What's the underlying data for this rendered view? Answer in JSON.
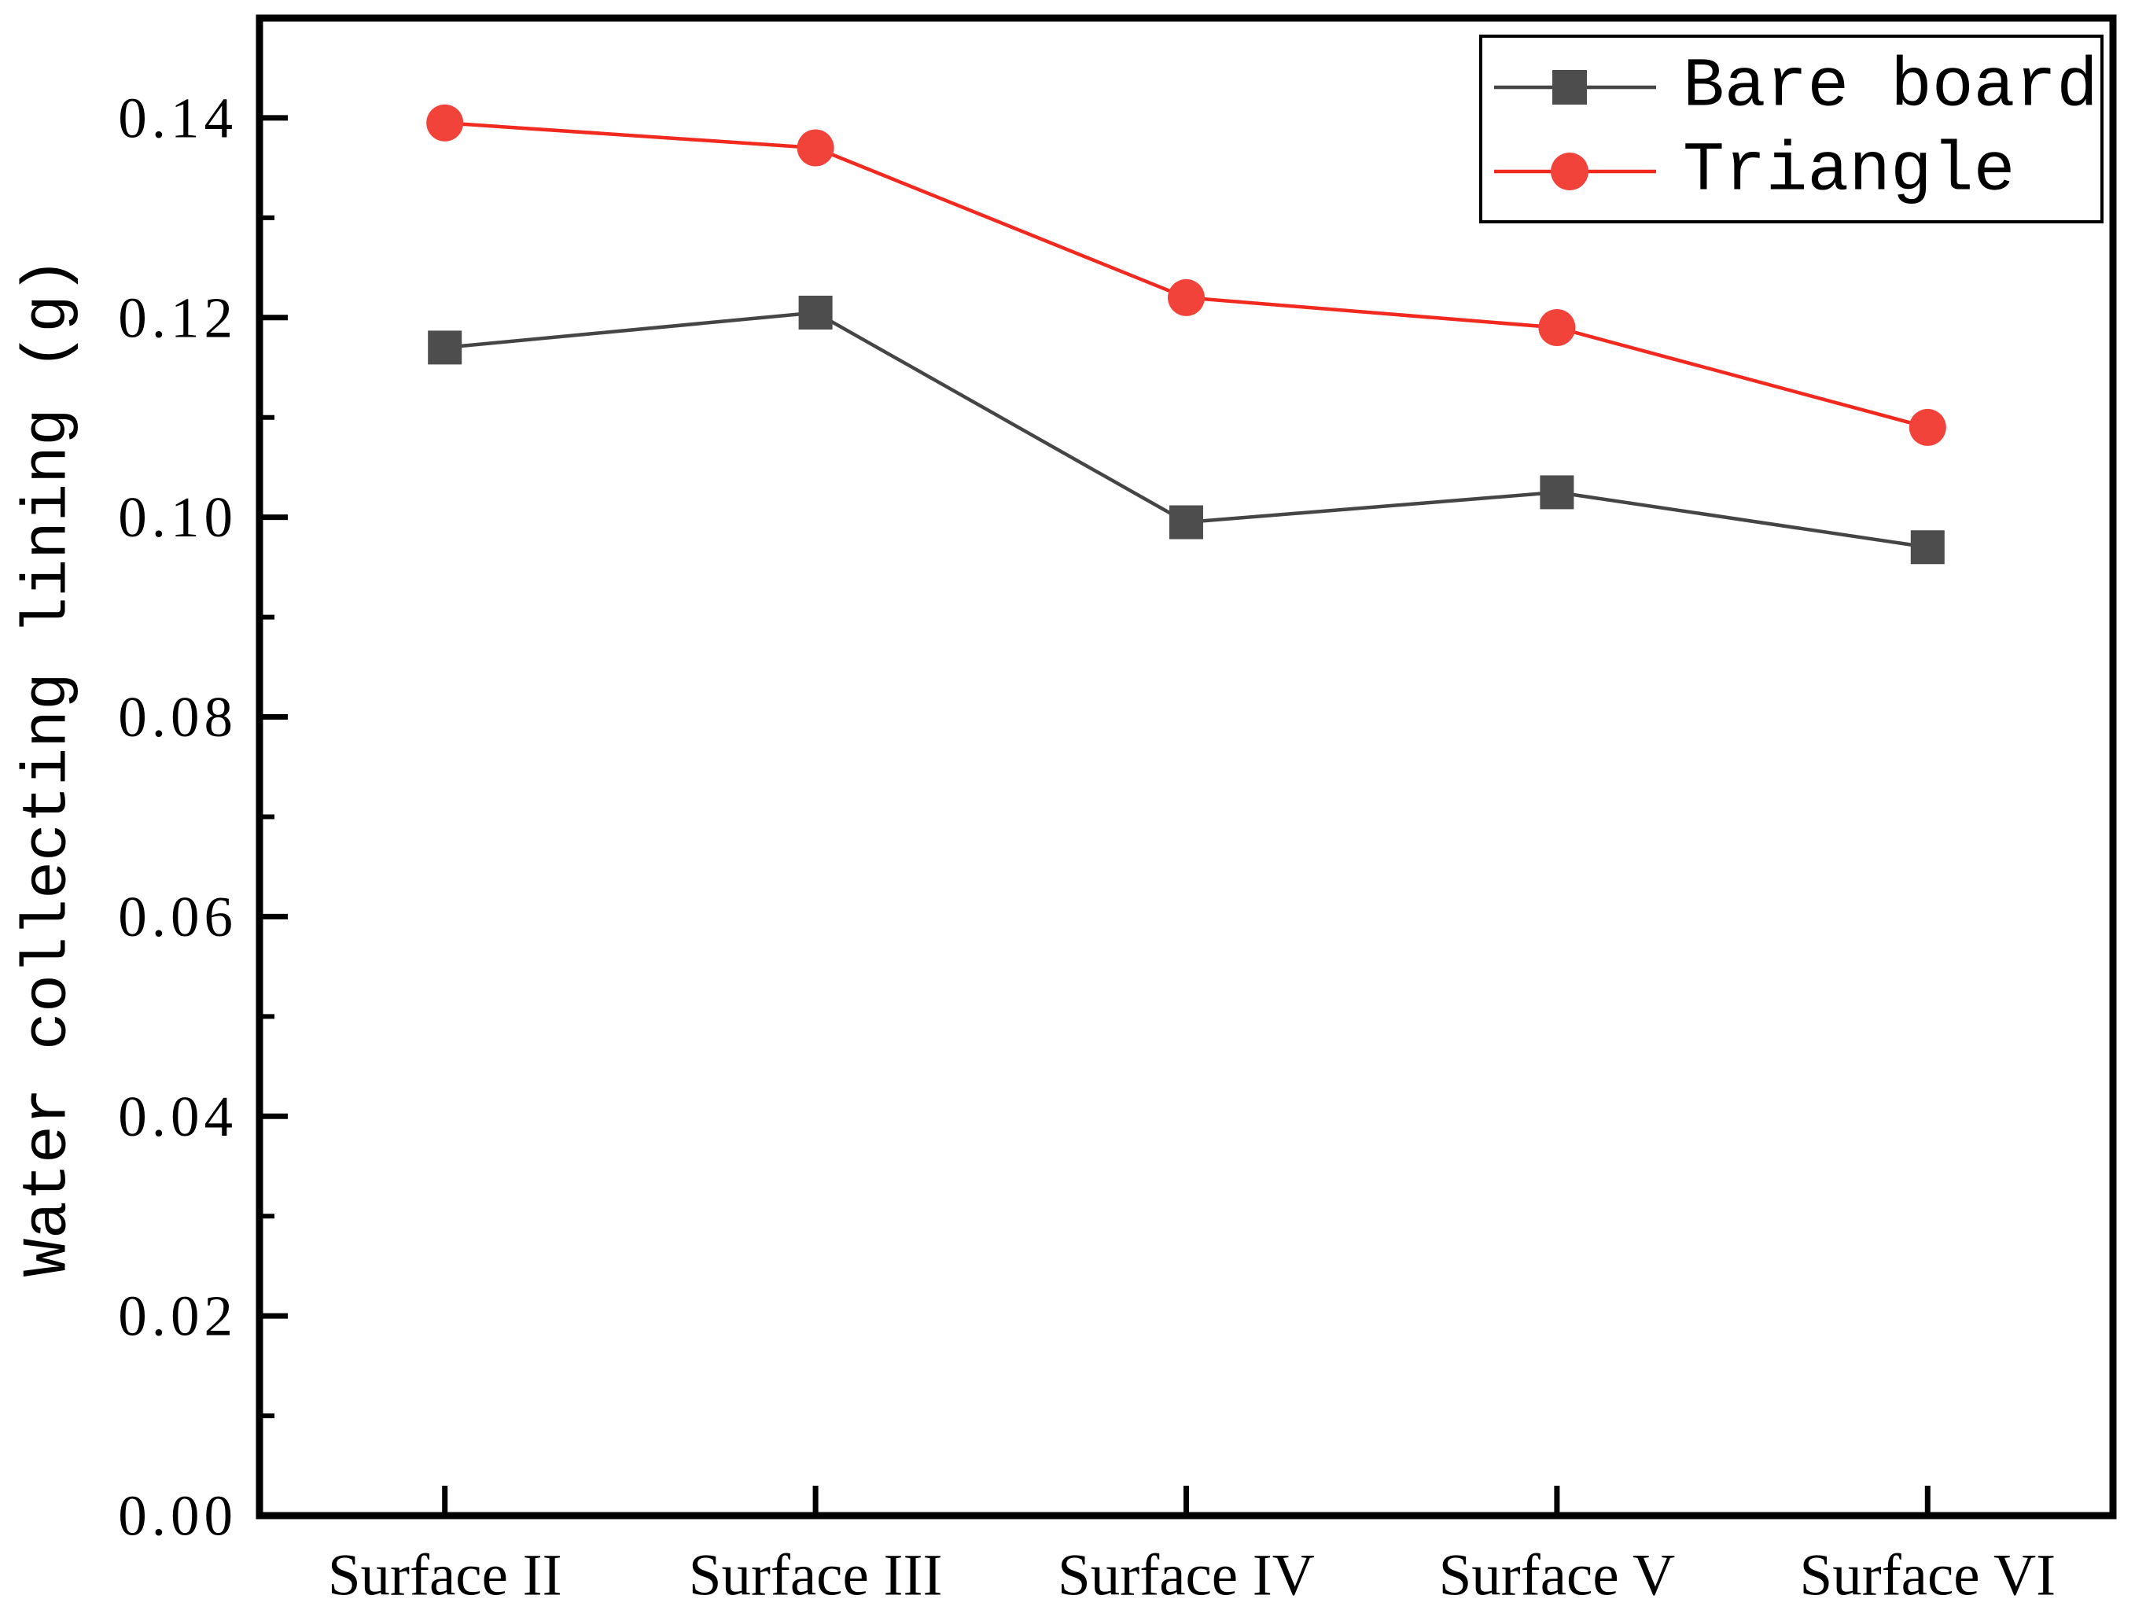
{
  "figure": {
    "background": "#ffffff",
    "frame_color": "#000000"
  },
  "chart_data": {
    "type": "line",
    "title": "",
    "categories": [
      "Surface II",
      "Surface III",
      "Surface IV",
      "Surface V",
      "Surface VI"
    ],
    "series": [
      {
        "name": "Bare board",
        "marker": "square",
        "values": [
          0.117,
          0.1205,
          0.0995,
          0.1025,
          0.097
        ],
        "line_color": "#454545",
        "marker_color": "#4D4D4D"
      },
      {
        "name": "Triangle",
        "marker": "circle",
        "values": [
          0.1395,
          0.137,
          0.122,
          0.119,
          0.109
        ],
        "line_color": "#F2291F",
        "marker_color": "#F2433B"
      }
    ],
    "xlabel": "",
    "ylabel": "Water collecting lining (g)",
    "ylim": [
      0.0,
      0.15
    ],
    "ytick_step": 0.02,
    "ytick_minor_step": 0.01,
    "ytick_labels": [
      "0.00",
      "0.02",
      "0.04",
      "0.06",
      "0.08",
      "0.10",
      "0.12",
      "0.14"
    ],
    "grid": false,
    "legend_position": "top-right",
    "axis_ticks_direction": "in"
  }
}
